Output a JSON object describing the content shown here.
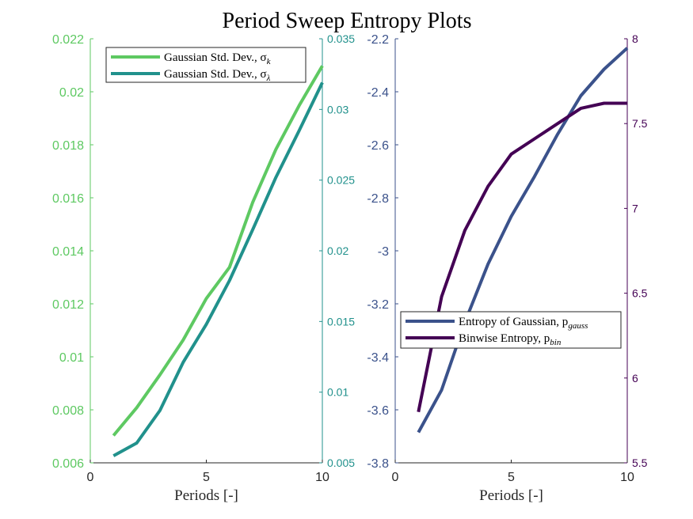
{
  "chart_data": {
    "title": "Period Sweep Entropy Plots",
    "charts": [
      {
        "type": "line",
        "xlabel": "Periods [-]",
        "xlim": [
          0,
          10
        ],
        "xticks": [
          "0",
          "5",
          "10"
        ],
        "ylim_left": [
          0.006,
          0.022
        ],
        "yticks_left": [
          "0.006",
          "0.008",
          "0.01",
          "0.012",
          "0.014",
          "0.016",
          "0.018",
          "0.02",
          "0.022"
        ],
        "ylim_right": [
          0.005,
          0.035
        ],
        "yticks_right": [
          "0.005",
          "0.01",
          "0.015",
          "0.02",
          "0.025",
          "0.03",
          "0.035"
        ],
        "left_axis_color": "#5ec962",
        "right_axis_color": "#21918c",
        "legend_position": "top-left",
        "legend": [
          "Gaussian Std. Dev., σ",
          "Gaussian Std. Dev., σ"
        ],
        "legend_subscripts": [
          "k",
          "λ"
        ],
        "series": [
          {
            "axis": "left",
            "color": "#5ec962",
            "x": [
              1,
              2,
              3,
              4,
              5,
              6,
              7,
              8,
              9,
              10
            ],
            "y": [
              0.00703,
              0.00808,
              0.00932,
              0.01063,
              0.0122,
              0.01338,
              0.01583,
              0.01783,
              0.01948,
              0.02098
            ]
          },
          {
            "axis": "right",
            "color": "#21918c",
            "x": [
              1,
              2,
              3,
              4,
              5,
              6,
              7,
              8,
              9,
              10
            ],
            "y": [
              0.0055,
              0.0064,
              0.0087,
              0.0121,
              0.0148,
              0.0179,
              0.0215,
              0.0252,
              0.0285,
              0.0319
            ]
          }
        ]
      },
      {
        "type": "line",
        "xlabel": "Periods [-]",
        "xlim": [
          0,
          10
        ],
        "xticks": [
          "0",
          "5",
          "10"
        ],
        "ylim_left": [
          -3.8,
          -2.2
        ],
        "yticks_left": [
          "-3.8",
          "-3.6",
          "-3.4",
          "-3.2",
          "-3",
          "-2.8",
          "-2.6",
          "-2.4",
          "-2.2"
        ],
        "ylim_right": [
          5.5,
          8
        ],
        "yticks_right": [
          "5.5",
          "6",
          "6.5",
          "7",
          "7.5",
          "8"
        ],
        "left_axis_color": "#3b528b",
        "right_axis_color": "#440154",
        "legend_position": "center-right",
        "legend": [
          "Entropy of Gaussian, p",
          "Binwise Entropy, p"
        ],
        "legend_subscripts": [
          "gauss",
          "bin"
        ],
        "series": [
          {
            "axis": "left",
            "color": "#3b528b",
            "x": [
              1,
              2,
              3,
              4,
              5,
              6,
              7,
              8,
              9,
              10
            ],
            "y": [
              -3.685,
              -3.525,
              -3.27,
              -3.05,
              -2.87,
              -2.72,
              -2.56,
              -2.415,
              -2.315,
              -2.235
            ]
          },
          {
            "axis": "right",
            "color": "#440154",
            "x": [
              1,
              2,
              3,
              4,
              5,
              6,
              7,
              8,
              9,
              10
            ],
            "y": [
              5.8,
              6.48,
              6.87,
              7.13,
              7.32,
              7.41,
              7.5,
              7.59,
              7.62,
              7.62
            ]
          }
        ]
      }
    ]
  }
}
